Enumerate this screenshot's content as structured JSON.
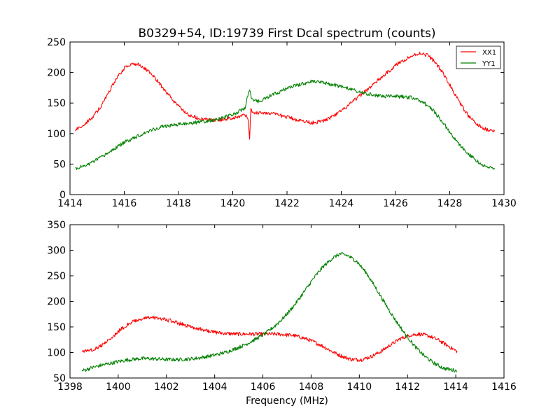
{
  "chart_data": {
    "title": "B0329+54, ID:19739 First Dcal spectrum (counts)",
    "xlabel": "Frequency (MHz)",
    "legend": {
      "placement": "top-right",
      "entries": [
        {
          "label": "XX1",
          "color": "#ff0000"
        },
        {
          "label": "YY1",
          "color": "#008000"
        }
      ]
    },
    "panels": [
      {
        "type": "line",
        "xlim": [
          1414,
          1430
        ],
        "ylim": [
          0,
          250
        ],
        "xticks": [
          1414,
          1416,
          1418,
          1420,
          1422,
          1424,
          1426,
          1428,
          1430
        ],
        "yticks": [
          0,
          50,
          100,
          150,
          200,
          250
        ],
        "grid": false,
        "series": [
          {
            "name": "XX1",
            "color": "#ff0000",
            "points": [
              [
                1414.2,
                106
              ],
              [
                1414.5,
                115
              ],
              [
                1414.8,
                125
              ],
              [
                1415.1,
                142
              ],
              [
                1415.4,
                165
              ],
              [
                1415.7,
                190
              ],
              [
                1416.0,
                207
              ],
              [
                1416.3,
                215
              ],
              [
                1416.6,
                212
              ],
              [
                1416.9,
                202
              ],
              [
                1417.2,
                188
              ],
              [
                1417.5,
                170
              ],
              [
                1417.8,
                155
              ],
              [
                1418.1,
                140
              ],
              [
                1418.4,
                130
              ],
              [
                1418.8,
                124
              ],
              [
                1419.2,
                122
              ],
              [
                1419.6,
                123
              ],
              [
                1420.0,
                126
              ],
              [
                1420.3,
                129
              ],
              [
                1420.5,
                131
              ],
              [
                1420.58,
                120
              ],
              [
                1420.62,
                85
              ],
              [
                1420.66,
                140
              ],
              [
                1420.72,
                134
              ],
              [
                1420.9,
                134
              ],
              [
                1421.3,
                134
              ],
              [
                1421.7,
                130
              ],
              [
                1422.1,
                126
              ],
              [
                1422.5,
                121
              ],
              [
                1422.9,
                118
              ],
              [
                1423.3,
                120
              ],
              [
                1423.7,
                128
              ],
              [
                1424.1,
                140
              ],
              [
                1424.5,
                155
              ],
              [
                1424.9,
                170
              ],
              [
                1425.3,
                185
              ],
              [
                1425.7,
                200
              ],
              [
                1426.1,
                215
              ],
              [
                1426.5,
                225
              ],
              [
                1426.9,
                232
              ],
              [
                1427.2,
                228
              ],
              [
                1427.5,
                215
              ],
              [
                1427.8,
                195
              ],
              [
                1428.1,
                172
              ],
              [
                1428.4,
                148
              ],
              [
                1428.7,
                128
              ],
              [
                1429.0,
                115
              ],
              [
                1429.3,
                107
              ],
              [
                1429.65,
                105
              ]
            ]
          },
          {
            "name": "YY1",
            "color": "#008000",
            "points": [
              [
                1414.2,
                42
              ],
              [
                1414.6,
                48
              ],
              [
                1415.0,
                57
              ],
              [
                1415.4,
                68
              ],
              [
                1415.8,
                80
              ],
              [
                1416.2,
                90
              ],
              [
                1416.6,
                98
              ],
              [
                1417.0,
                106
              ],
              [
                1417.4,
                111
              ],
              [
                1417.8,
                114
              ],
              [
                1418.2,
                116
              ],
              [
                1418.6,
                118
              ],
              [
                1419.0,
                120
              ],
              [
                1419.4,
                123
              ],
              [
                1419.8,
                128
              ],
              [
                1420.2,
                135
              ],
              [
                1420.45,
                142
              ],
              [
                1420.55,
                160
              ],
              [
                1420.62,
                172
              ],
              [
                1420.7,
                158
              ],
              [
                1420.9,
                152
              ],
              [
                1421.3,
                160
              ],
              [
                1421.7,
                168
              ],
              [
                1422.1,
                176
              ],
              [
                1422.5,
                181
              ],
              [
                1422.9,
                185
              ],
              [
                1423.2,
                184
              ],
              [
                1423.6,
                181
              ],
              [
                1424.0,
                177
              ],
              [
                1424.4,
                172
              ],
              [
                1424.8,
                166
              ],
              [
                1425.2,
                163
              ],
              [
                1425.6,
                161
              ],
              [
                1426.0,
                161
              ],
              [
                1426.4,
                160
              ],
              [
                1426.7,
                158
              ],
              [
                1427.0,
                152
              ],
              [
                1427.4,
                138
              ],
              [
                1427.8,
                115
              ],
              [
                1428.2,
                90
              ],
              [
                1428.6,
                70
              ],
              [
                1429.0,
                55
              ],
              [
                1429.3,
                46
              ],
              [
                1429.65,
                43
              ]
            ]
          }
        ]
      },
      {
        "type": "line",
        "xlim": [
          1398,
          1416
        ],
        "ylim": [
          50,
          350
        ],
        "xticks": [
          1398,
          1400,
          1402,
          1404,
          1406,
          1408,
          1410,
          1412,
          1414,
          1416
        ],
        "yticks": [
          50,
          100,
          150,
          200,
          250,
          300,
          350
        ],
        "grid": false,
        "series": [
          {
            "name": "XX1",
            "color": "#ff0000",
            "points": [
              [
                1398.5,
                102
              ],
              [
                1398.9,
                105
              ],
              [
                1399.3,
                113
              ],
              [
                1399.7,
                128
              ],
              [
                1400.1,
                145
              ],
              [
                1400.5,
                158
              ],
              [
                1400.9,
                165
              ],
              [
                1401.3,
                168
              ],
              [
                1401.7,
                167
              ],
              [
                1402.1,
                163
              ],
              [
                1402.5,
                157
              ],
              [
                1402.9,
                152
              ],
              [
                1403.3,
                147
              ],
              [
                1403.7,
                142
              ],
              [
                1404.1,
                139
              ],
              [
                1404.5,
                137
              ],
              [
                1404.9,
                136
              ],
              [
                1405.3,
                136
              ],
              [
                1405.7,
                136
              ],
              [
                1406.1,
                136
              ],
              [
                1406.5,
                136
              ],
              [
                1406.9,
                135
              ],
              [
                1407.3,
                133
              ],
              [
                1407.7,
                128
              ],
              [
                1408.1,
                121
              ],
              [
                1408.5,
                112
              ],
              [
                1408.9,
                101
              ],
              [
                1409.3,
                92
              ],
              [
                1409.7,
                86
              ],
              [
                1410.1,
                86
              ],
              [
                1410.5,
                92
              ],
              [
                1410.9,
                102
              ],
              [
                1411.3,
                115
              ],
              [
                1411.7,
                127
              ],
              [
                1412.1,
                134
              ],
              [
                1412.5,
                136
              ],
              [
                1412.9,
                132
              ],
              [
                1413.3,
                124
              ],
              [
                1413.7,
                112
              ],
              [
                1414.05,
                102
              ]
            ]
          },
          {
            "name": "YY1",
            "color": "#008000",
            "points": [
              [
                1398.5,
                64
              ],
              [
                1398.9,
                70
              ],
              [
                1399.3,
                75
              ],
              [
                1399.7,
                79
              ],
              [
                1400.1,
                83
              ],
              [
                1400.5,
                86
              ],
              [
                1400.9,
                88
              ],
              [
                1401.3,
                88
              ],
              [
                1401.7,
                87
              ],
              [
                1402.1,
                86
              ],
              [
                1402.5,
                86
              ],
              [
                1402.9,
                87
              ],
              [
                1403.3,
                89
              ],
              [
                1403.7,
                92
              ],
              [
                1404.1,
                96
              ],
              [
                1404.5,
                101
              ],
              [
                1404.9,
                108
              ],
              [
                1405.3,
                116
              ],
              [
                1405.7,
                126
              ],
              [
                1406.1,
                137
              ],
              [
                1406.5,
                152
              ],
              [
                1406.9,
                170
              ],
              [
                1407.3,
                192
              ],
              [
                1407.7,
                218
              ],
              [
                1408.1,
                245
              ],
              [
                1408.5,
                268
              ],
              [
                1408.9,
                285
              ],
              [
                1409.2,
                293
              ],
              [
                1409.5,
                290
              ],
              [
                1409.9,
                278
              ],
              [
                1410.3,
                255
              ],
              [
                1410.7,
                225
              ],
              [
                1411.1,
                193
              ],
              [
                1411.5,
                163
              ],
              [
                1411.9,
                136
              ],
              [
                1412.3,
                112
              ],
              [
                1412.7,
                93
              ],
              [
                1413.1,
                79
              ],
              [
                1413.5,
                69
              ],
              [
                1414.05,
                64
              ]
            ]
          }
        ]
      }
    ]
  }
}
